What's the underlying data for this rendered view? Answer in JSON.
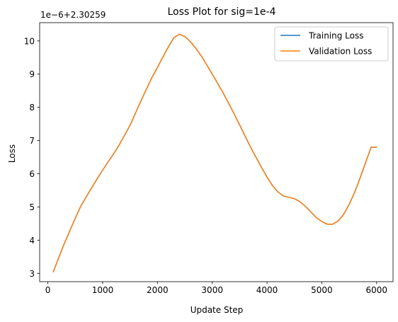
{
  "chart_data": {
    "type": "line",
    "title": "Loss Plot for sig=1e-4",
    "xlabel": "Update Step",
    "ylabel": "Loss",
    "y_offset_label": "1e−6+2.30259",
    "xlim": [
      -150,
      6300
    ],
    "ylim": [
      2.75,
      10.55
    ],
    "xticks": [
      0,
      1000,
      2000,
      3000,
      4000,
      5000,
      6000
    ],
    "xtick_labels": [
      "0",
      "1000",
      "2000",
      "3000",
      "4000",
      "5000",
      "6000"
    ],
    "yticks": [
      3,
      4,
      5,
      6,
      7,
      8,
      9,
      10
    ],
    "ytick_labels": [
      "3",
      "4",
      "5",
      "6",
      "7",
      "8",
      "9",
      "10"
    ],
    "grid": false,
    "legend_position": "top-right",
    "x": [
      100,
      200,
      300,
      400,
      500,
      600,
      700,
      800,
      900,
      1000,
      1100,
      1200,
      1300,
      1400,
      1500,
      1600,
      1700,
      1800,
      1900,
      2000,
      2100,
      2200,
      2300,
      2400,
      2500,
      2600,
      2700,
      2800,
      2900,
      3000,
      3100,
      3200,
      3300,
      3400,
      3500,
      3600,
      3700,
      3800,
      3900,
      4000,
      4100,
      4200,
      4300,
      4400,
      4500,
      4600,
      4700,
      4800,
      4900,
      5000,
      5100,
      5200,
      5300,
      5400,
      5500,
      5600,
      5700,
      5800,
      5900,
      6000
    ],
    "series": [
      {
        "name": "Training Loss",
        "color": "#1f77b4",
        "values": [
          3.05,
          3.48,
          3.9,
          4.28,
          4.66,
          5.02,
          5.3,
          5.58,
          5.85,
          6.11,
          6.36,
          6.6,
          6.86,
          7.16,
          7.46,
          7.83,
          8.2,
          8.55,
          8.9,
          9.2,
          9.52,
          9.82,
          10.1,
          10.2,
          10.13,
          9.98,
          9.78,
          9.55,
          9.28,
          9.0,
          8.72,
          8.43,
          8.12,
          7.8,
          7.47,
          7.13,
          6.8,
          6.49,
          6.19,
          5.9,
          5.64,
          5.45,
          5.33,
          5.29,
          5.25,
          5.16,
          5.02,
          4.85,
          4.68,
          4.56,
          4.48,
          4.48,
          4.58,
          4.78,
          5.08,
          5.44,
          5.88,
          6.34,
          6.8,
          6.8
        ]
      },
      {
        "name": "Validation Loss",
        "color": "#ff7f0e",
        "values": [
          3.05,
          3.48,
          3.9,
          4.28,
          4.66,
          5.02,
          5.3,
          5.58,
          5.85,
          6.11,
          6.36,
          6.6,
          6.86,
          7.16,
          7.46,
          7.83,
          8.2,
          8.55,
          8.9,
          9.2,
          9.52,
          9.82,
          10.1,
          10.2,
          10.13,
          9.98,
          9.78,
          9.55,
          9.28,
          9.0,
          8.72,
          8.43,
          8.12,
          7.8,
          7.47,
          7.13,
          6.8,
          6.49,
          6.19,
          5.9,
          5.64,
          5.45,
          5.33,
          5.29,
          5.25,
          5.16,
          5.02,
          4.85,
          4.68,
          4.56,
          4.48,
          4.48,
          4.58,
          4.78,
          5.08,
          5.44,
          5.88,
          6.34,
          6.8,
          6.8
        ]
      }
    ]
  }
}
